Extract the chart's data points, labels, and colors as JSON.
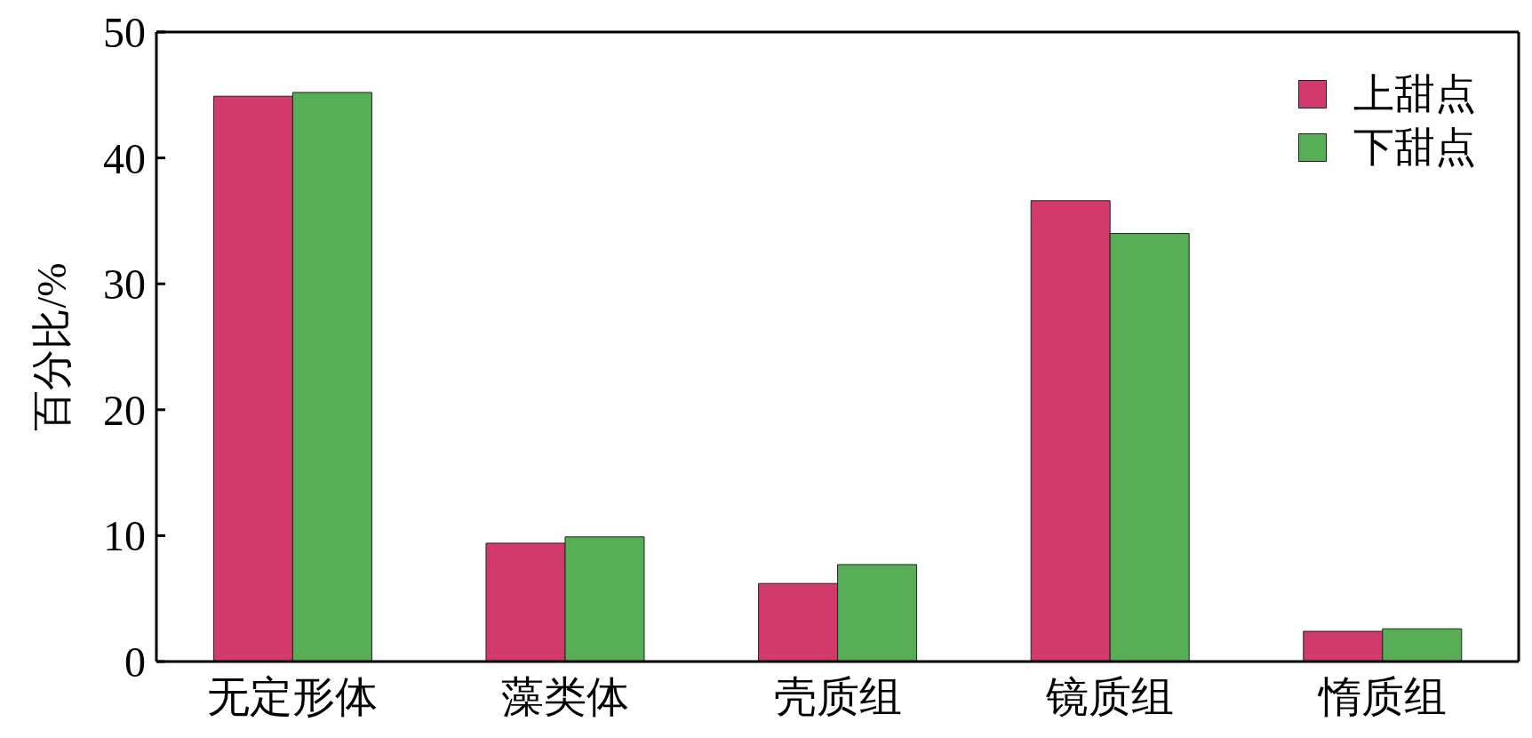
{
  "chart_data": {
    "type": "bar",
    "ylabel": "百分比/%",
    "categories": [
      "无定形体",
      "藻类体",
      "壳质组",
      "镜质组",
      "惰质组"
    ],
    "series": [
      {
        "name": "上甜点",
        "color": "#d13a6a",
        "values": [
          44.9,
          9.4,
          6.2,
          36.6,
          2.4
        ]
      },
      {
        "name": "下甜点",
        "color": "#58ad57",
        "values": [
          45.2,
          9.9,
          7.7,
          34.0,
          2.6
        ]
      }
    ],
    "ylim": [
      0,
      50
    ],
    "yticks": [
      0,
      10,
      20,
      30,
      40,
      50
    ],
    "grid": false,
    "legend": "top right"
  }
}
